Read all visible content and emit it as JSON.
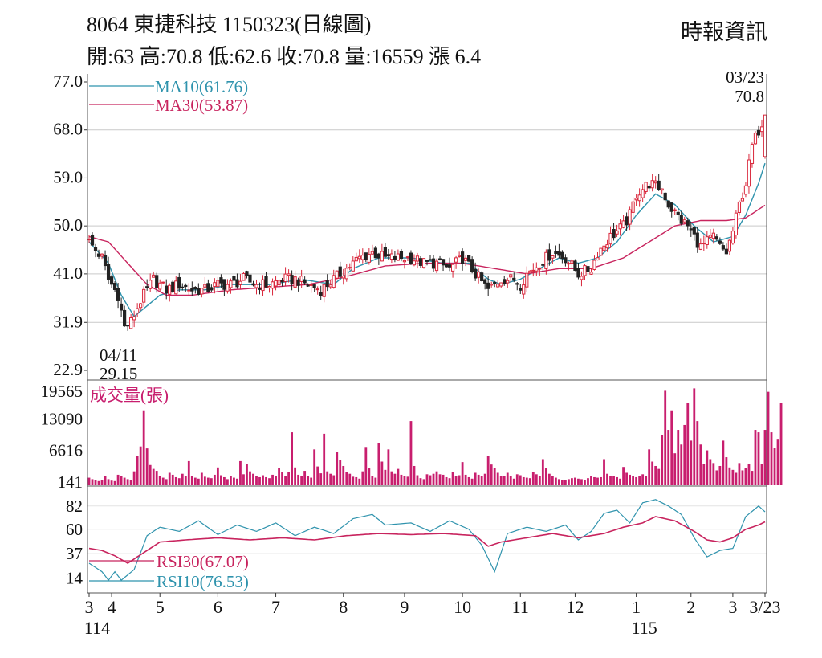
{
  "header": {
    "title": "8064  東捷科技 1150323(日線圖)",
    "stats": "開:63 高:70.8 低:62.6 收:70.8 量:16559 漲 6.4",
    "source": "時報資訊"
  },
  "colors": {
    "up": "#d9263b",
    "down": "#222222",
    "ma10": "#2f93ad",
    "ma30": "#c8245e",
    "volume": "#c81e6e",
    "rsi30": "#c8245e",
    "rsi10": "#2f93ad",
    "grid": "#c9c9c9",
    "frame": "#555555"
  },
  "chart_data": [
    {
      "type": "candlestick",
      "title": "8064 東捷科技 1150323(日線圖)",
      "y_ticks": [
        "77.0",
        "68.0",
        "59.0",
        "50.0",
        "41.0",
        "31.9",
        "22.9"
      ],
      "ylim": [
        22.9,
        77.0
      ],
      "grid": true,
      "legend": [
        {
          "name": "MA10(61.76)",
          "color": "#2f93ad"
        },
        {
          "name": "MA30(53.87)",
          "color": "#c8245e"
        }
      ],
      "annotations": [
        {
          "date": "03/23",
          "value": "70.8",
          "text_date": "03/23",
          "text_value": "70.8",
          "pos": "top-right"
        },
        {
          "date": "04/11",
          "value": "29.15",
          "text_date": "04/11",
          "text_value": "29.15",
          "pos": "bottom-left"
        }
      ],
      "last_bar": {
        "open": 63,
        "high": 70.8,
        "low": 62.6,
        "close": 70.8,
        "volume": 16559,
        "change": 6.4
      },
      "price_path": [
        [
          0,
          47
        ],
        [
          4,
          44
        ],
        [
          6,
          40
        ],
        [
          9,
          37
        ],
        [
          11,
          31
        ],
        [
          13,
          32
        ],
        [
          16,
          36
        ],
        [
          18,
          38
        ],
        [
          20,
          40
        ],
        [
          24,
          38
        ],
        [
          28,
          39
        ],
        [
          32,
          38
        ],
        [
          36,
          38
        ],
        [
          40,
          39
        ],
        [
          44,
          39
        ],
        [
          48,
          40
        ],
        [
          52,
          39
        ],
        [
          56,
          39
        ],
        [
          60,
          40
        ],
        [
          64,
          40
        ],
        [
          68,
          39
        ],
        [
          72,
          38
        ],
        [
          76,
          40
        ],
        [
          80,
          42
        ],
        [
          84,
          44
        ],
        [
          88,
          45
        ],
        [
          92,
          44
        ],
        [
          96,
          44
        ],
        [
          100,
          44
        ],
        [
          104,
          43
        ],
        [
          108,
          43
        ],
        [
          112,
          42
        ],
        [
          116,
          44
        ],
        [
          120,
          41
        ],
        [
          124,
          38
        ],
        [
          128,
          40
        ],
        [
          132,
          40
        ],
        [
          134,
          39
        ],
        [
          136,
          41
        ],
        [
          140,
          43
        ],
        [
          144,
          45
        ],
        [
          148,
          44
        ],
        [
          152,
          41
        ],
        [
          156,
          42
        ],
        [
          158,
          45
        ],
        [
          162,
          48
        ],
        [
          166,
          50
        ],
        [
          168,
          52
        ],
        [
          170,
          56
        ],
        [
          174,
          58
        ],
        [
          178,
          57
        ],
        [
          180,
          54
        ],
        [
          184,
          51
        ],
        [
          186,
          50
        ],
        [
          190,
          46
        ],
        [
          194,
          48
        ],
        [
          196,
          46
        ],
        [
          198,
          45
        ],
        [
          200,
          49
        ],
        [
          202,
          54
        ],
        [
          204,
          58
        ],
        [
          206,
          65
        ],
        [
          208,
          68
        ],
        [
          210,
          70.8
        ]
      ],
      "ma10_path": [
        [
          0,
          47
        ],
        [
          6,
          43
        ],
        [
          10,
          37
        ],
        [
          14,
          33
        ],
        [
          18,
          35
        ],
        [
          22,
          37
        ],
        [
          28,
          38
        ],
        [
          36,
          38
        ],
        [
          44,
          39
        ],
        [
          56,
          39
        ],
        [
          66,
          40
        ],
        [
          76,
          39
        ],
        [
          82,
          42
        ],
        [
          90,
          44
        ],
        [
          100,
          44
        ],
        [
          110,
          43
        ],
        [
          118,
          43
        ],
        [
          124,
          40
        ],
        [
          128,
          39
        ],
        [
          134,
          40
        ],
        [
          140,
          42
        ],
        [
          146,
          44
        ],
        [
          152,
          43
        ],
        [
          158,
          44
        ],
        [
          164,
          47
        ],
        [
          170,
          52
        ],
        [
          176,
          56
        ],
        [
          182,
          54
        ],
        [
          188,
          50
        ],
        [
          194,
          47
        ],
        [
          200,
          48
        ],
        [
          204,
          52
        ],
        [
          208,
          58
        ],
        [
          210,
          61.76
        ]
      ],
      "ma30_path": [
        [
          0,
          48
        ],
        [
          6,
          47
        ],
        [
          12,
          43
        ],
        [
          18,
          39
        ],
        [
          24,
          37
        ],
        [
          32,
          37
        ],
        [
          44,
          38
        ],
        [
          56,
          38.5
        ],
        [
          68,
          39
        ],
        [
          80,
          40.5
        ],
        [
          92,
          42.5
        ],
        [
          104,
          43
        ],
        [
          116,
          43
        ],
        [
          126,
          42
        ],
        [
          136,
          41
        ],
        [
          146,
          42
        ],
        [
          156,
          42
        ],
        [
          166,
          44
        ],
        [
          174,
          47
        ],
        [
          182,
          50
        ],
        [
          190,
          51
        ],
        [
          198,
          51
        ],
        [
          204,
          51.5
        ],
        [
          210,
          53.87
        ]
      ]
    },
    {
      "type": "bar",
      "title": "成交量(張)",
      "y_ticks": [
        "19565",
        "13090",
        "6616",
        "141"
      ],
      "ylim": [
        141,
        19565
      ],
      "values": [
        1200,
        900,
        700,
        500,
        800,
        1500,
        900,
        600,
        500,
        1800,
        1600,
        1200,
        900,
        700,
        2500,
        5600,
        7600,
        15000,
        7200,
        3800,
        3000,
        2600,
        1500,
        1200,
        900,
        2200,
        1800,
        1300,
        1100,
        2000,
        1600,
        4600,
        1600,
        1200,
        1000,
        2200,
        1400,
        1200,
        1100,
        1800,
        3300,
        1700,
        1300,
        900,
        1600,
        1200,
        1000,
        4600,
        1900,
        4000,
        2500,
        2000,
        1500,
        1300,
        1700,
        1300,
        1100,
        1800,
        1500,
        3200,
        2400,
        1600,
        2400,
        10500,
        3300,
        1800,
        1500,
        2600,
        1500,
        1200,
        7000,
        3500,
        2100,
        10200,
        2500,
        2000,
        1700,
        6400,
        4800,
        3600,
        2300,
        2000,
        1400,
        1300,
        1000,
        2500,
        7500,
        3100,
        1500,
        1200,
        8300,
        4500,
        2800,
        7000,
        2500,
        2000,
        3000,
        1800,
        1600,
        1400,
        12800,
        3600,
        1700,
        1100,
        900,
        1900,
        1700,
        2000,
        2500,
        1900,
        1800,
        1300,
        1100,
        2300,
        1600,
        1700,
        4400,
        1800,
        1300,
        1000,
        2200,
        1800,
        1500,
        2000,
        5700,
        3900,
        3200,
        2200,
        1500,
        1600,
        2200,
        1500,
        1000,
        1900,
        1700,
        1300,
        1200,
        1100,
        2400,
        1900,
        1500,
        5000,
        3100,
        2000,
        1500,
        1200,
        900,
        800,
        700,
        900,
        1100,
        1200,
        1000,
        900,
        800,
        1100,
        1500,
        1300,
        1200,
        1300,
        5000,
        2000,
        1600,
        1500,
        1300,
        1000,
        3400,
        2200,
        1800,
        1500,
        1300,
        1600,
        1900,
        1500,
        7000,
        4500,
        3600,
        3000,
        10000,
        19000,
        11000,
        15000,
        6200,
        11000,
        8000,
        12000,
        16500,
        8800,
        19500,
        12800,
        8000,
        4000,
        6800,
        5000,
        4200,
        2700,
        3600,
        8800,
        5400,
        3300,
        2800,
        2200,
        4200,
        2700,
        3200,
        4000,
        2600,
        11000,
        10500,
        4000,
        11000,
        18800,
        10500,
        7300,
        9000,
        16559
      ]
    },
    {
      "type": "line",
      "y_ticks": [
        "82",
        "60",
        "37",
        "14"
      ],
      "ylim": [
        0,
        100
      ],
      "legend": [
        {
          "name": "RSI30(67.07)",
          "color": "#c8245e"
        },
        {
          "name": "RSI10(76.53)",
          "color": "#2f93ad"
        }
      ],
      "series": [
        {
          "name": "RSI30(67.07)",
          "points": [
            [
              0,
              42
            ],
            [
              4,
              40
            ],
            [
              8,
              35
            ],
            [
              12,
              28
            ],
            [
              16,
              36
            ],
            [
              22,
              48
            ],
            [
              30,
              50
            ],
            [
              40,
              52
            ],
            [
              50,
              50
            ],
            [
              60,
              52
            ],
            [
              70,
              50
            ],
            [
              80,
              54
            ],
            [
              90,
              56
            ],
            [
              100,
              55
            ],
            [
              110,
              56
            ],
            [
              120,
              54
            ],
            [
              124,
              44
            ],
            [
              128,
              48
            ],
            [
              136,
              52
            ],
            [
              144,
              56
            ],
            [
              152,
              52
            ],
            [
              160,
              56
            ],
            [
              166,
              62
            ],
            [
              172,
              66
            ],
            [
              176,
              72
            ],
            [
              182,
              68
            ],
            [
              188,
              58
            ],
            [
              192,
              50
            ],
            [
              196,
              48
            ],
            [
              200,
              52
            ],
            [
              204,
              60
            ],
            [
              208,
              64
            ],
            [
              210,
              67.07
            ]
          ]
        },
        {
          "name": "RSI10(76.53)",
          "points": [
            [
              0,
              28
            ],
            [
              4,
              20
            ],
            [
              6,
              12
            ],
            [
              8,
              20
            ],
            [
              10,
              12
            ],
            [
              14,
              22
            ],
            [
              18,
              54
            ],
            [
              22,
              62
            ],
            [
              28,
              58
            ],
            [
              34,
              68
            ],
            [
              40,
              55
            ],
            [
              46,
              64
            ],
            [
              52,
              58
            ],
            [
              58,
              66
            ],
            [
              64,
              54
            ],
            [
              70,
              62
            ],
            [
              76,
              56
            ],
            [
              82,
              70
            ],
            [
              88,
              74
            ],
            [
              92,
              64
            ],
            [
              100,
              66
            ],
            [
              106,
              58
            ],
            [
              112,
              68
            ],
            [
              118,
              60
            ],
            [
              122,
              45
            ],
            [
              126,
              20
            ],
            [
              130,
              56
            ],
            [
              136,
              62
            ],
            [
              142,
              58
            ],
            [
              148,
              64
            ],
            [
              152,
              50
            ],
            [
              156,
              58
            ],
            [
              160,
              75
            ],
            [
              164,
              78
            ],
            [
              168,
              66
            ],
            [
              172,
              85
            ],
            [
              176,
              88
            ],
            [
              180,
              82
            ],
            [
              184,
              74
            ],
            [
              188,
              52
            ],
            [
              192,
              34
            ],
            [
              196,
              40
            ],
            [
              200,
              42
            ],
            [
              204,
              72
            ],
            [
              208,
              82
            ],
            [
              210,
              76.53
            ]
          ]
        }
      ]
    }
  ],
  "x_axis": {
    "ticks": [
      {
        "label": "3",
        "idx": 0
      },
      {
        "label": "4",
        "idx": 7
      },
      {
        "label": "5",
        "idx": 22
      },
      {
        "label": "6",
        "idx": 40
      },
      {
        "label": "7",
        "idx": 58
      },
      {
        "label": "8",
        "idx": 79
      },
      {
        "label": "9",
        "idx": 98
      },
      {
        "label": "10",
        "idx": 116
      },
      {
        "label": "11",
        "idx": 134
      },
      {
        "label": "12",
        "idx": 151
      },
      {
        "label": "1",
        "idx": 170
      },
      {
        "label": "2",
        "idx": 187
      },
      {
        "label": "3",
        "idx": 200
      },
      {
        "label": "3/23",
        "idx": 210
      }
    ],
    "year_labels": [
      {
        "label": "114",
        "idx": 0
      },
      {
        "label": "115",
        "idx": 170
      }
    ]
  }
}
